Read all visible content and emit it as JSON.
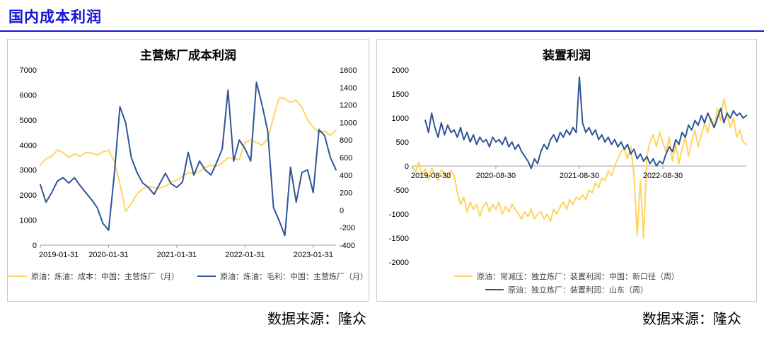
{
  "header": {
    "title": "国内成本利润"
  },
  "colors": {
    "accent": "#1414d6",
    "axis": "#9aa0a6"
  },
  "sources": {
    "left": "数据来源：隆众",
    "right": "数据来源：隆众"
  },
  "chart_data": [
    {
      "type": "line",
      "title": "主营炼厂成本利润",
      "x_tick_labels": [
        "2019-01-31",
        "2020-01-31",
        "2021-01-31",
        "2022-01-31",
        "2023-01-31"
      ],
      "x_tick_indices": [
        0,
        12,
        24,
        36,
        48
      ],
      "n_points": 53,
      "left_axis": {
        "min": 0,
        "max": 7000,
        "step": 1000
      },
      "right_axis": {
        "min": -400,
        "max": 1600,
        "step": 200
      },
      "grid": false,
      "legend_position": "bottom",
      "series": [
        {
          "name": "原油：炼油：成本：中国：主营炼厂（月）",
          "color": "#FFD45E",
          "axis": "left",
          "values": [
            3200,
            3450,
            3550,
            3800,
            3700,
            3500,
            3650,
            3550,
            3700,
            3680,
            3600,
            3720,
            3800,
            3350,
            2450,
            1350,
            1650,
            2050,
            2250,
            2350,
            2300,
            2280,
            2350,
            2500,
            2600,
            2750,
            2900,
            2850,
            2950,
            3100,
            3200,
            3150,
            3280,
            3500,
            3450,
            3420,
            4100,
            4200,
            4100,
            4000,
            4250,
            5100,
            5900,
            5850,
            5700,
            5780,
            5500,
            5000,
            4700,
            4500,
            4560,
            4380,
            4600
          ]
        },
        {
          "name": "原油：炼油：毛利：中国：主营炼厂（月）",
          "color": "#2F5597",
          "axis": "right",
          "values": [
            290,
            90,
            200,
            330,
            370,
            310,
            370,
            280,
            200,
            120,
            30,
            -150,
            -230,
            400,
            1180,
            1000,
            600,
            430,
            310,
            260,
            180,
            300,
            420,
            300,
            260,
            320,
            660,
            400,
            560,
            460,
            400,
            540,
            700,
            1370,
            560,
            800,
            700,
            560,
            1460,
            1200,
            900,
            30,
            -120,
            -290,
            490,
            90,
            430,
            460,
            200,
            920,
            850,
            600,
            460
          ]
        }
      ]
    },
    {
      "type": "line",
      "title": "装置利润",
      "x_tick_labels": [
        "2019-08-30",
        "2020-08-30",
        "2021-08-30",
        "2022-08-30"
      ],
      "x_tick_indices": [
        0,
        26,
        52,
        78
      ],
      "n_points": 105,
      "left_axis": {
        "min": -2000,
        "max": 2000,
        "step": 500
      },
      "grid": false,
      "legend_position": "bottom",
      "series": [
        {
          "name": "原油：常减压：独立炼厂：装置利润：中国：新口径（周）",
          "color": "#FFD45E",
          "axis": "left",
          "values": [
            0,
            -120,
            80,
            -200,
            -60,
            -280,
            -40,
            -180,
            -300,
            -80,
            -150,
            -250,
            -100,
            -200,
            -550,
            -800,
            -650,
            -950,
            -750,
            -900,
            -800,
            -1050,
            -850,
            -750,
            -950,
            -800,
            -900,
            -750,
            -1000,
            -850,
            -950,
            -800,
            -900,
            -1000,
            -1100,
            -950,
            -1050,
            -900,
            -1100,
            -1000,
            -950,
            -1100,
            -1000,
            -1150,
            -900,
            -1000,
            -850,
            -750,
            -900,
            -700,
            -800,
            -650,
            -700,
            -600,
            -700,
            -500,
            -550,
            -350,
            -450,
            -250,
            -300,
            -100,
            -200,
            0,
            150,
            300,
            350,
            150,
            400,
            -200,
            -1450,
            -300,
            -1500,
            200,
            500,
            650,
            400,
            700,
            500,
            300,
            600,
            100,
            450,
            50,
            350,
            600,
            200,
            500,
            750,
            400,
            650,
            900,
            700,
            1000,
            800,
            1200,
            950,
            1400,
            1100,
            800,
            1000,
            600,
            750,
            500,
            450
          ]
        },
        {
          "name": "原油：独立炼厂：装置利润：山东（周）",
          "color": "#2F5597",
          "axis": "left",
          "values": [
            null,
            null,
            null,
            null,
            950,
            700,
            1100,
            800,
            600,
            900,
            650,
            850,
            700,
            750,
            600,
            800,
            550,
            700,
            500,
            650,
            450,
            600,
            500,
            550,
            400,
            600,
            500,
            550,
            450,
            600,
            400,
            500,
            350,
            450,
            300,
            200,
            100,
            -50,
            150,
            50,
            300,
            450,
            350,
            550,
            650,
            500,
            700,
            600,
            750,
            650,
            800,
            700,
            1850,
            900,
            700,
            800,
            650,
            750,
            550,
            650,
            500,
            600,
            450,
            550,
            400,
            500,
            350,
            450,
            250,
            350,
            150,
            250,
            100,
            200,
            50,
            150,
            0,
            100,
            50,
            250,
            400,
            300,
            550,
            450,
            700,
            600,
            850,
            750,
            950,
            850,
            1050,
            900,
            1100,
            950,
            800,
            1000,
            1200,
            900,
            1100,
            1000,
            1150,
            1050,
            1100,
            1000,
            1050
          ]
        }
      ]
    }
  ]
}
